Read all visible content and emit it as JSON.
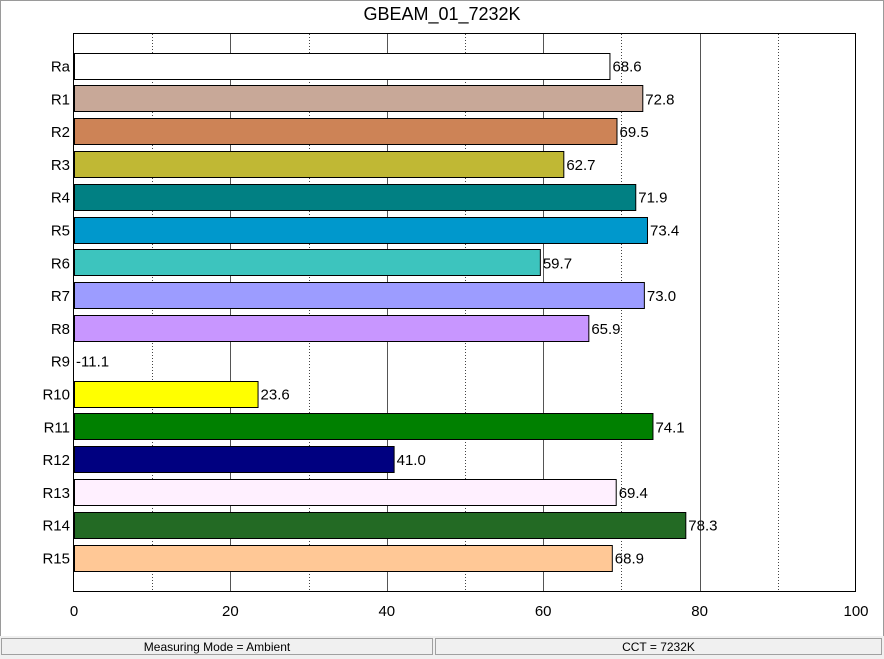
{
  "chart_data": {
    "type": "bar",
    "orientation": "horizontal",
    "title": "GBEAM_01_7232K",
    "categories": [
      "Ra",
      "R1",
      "R2",
      "R3",
      "R4",
      "R5",
      "R6",
      "R7",
      "R8",
      "R9",
      "R10",
      "R11",
      "R12",
      "R13",
      "R14",
      "R15"
    ],
    "values": [
      68.6,
      72.8,
      69.5,
      62.7,
      71.9,
      73.4,
      59.7,
      73.0,
      65.9,
      -11.1,
      23.6,
      74.1,
      41.0,
      69.4,
      78.3,
      68.9
    ],
    "value_labels": [
      "68.6",
      "72.8",
      "69.5",
      "62.7",
      "71.9",
      "73.4",
      "59.7",
      "73.0",
      "65.9",
      "-11.1",
      "23.6",
      "74.1",
      "41.0",
      "69.4",
      "78.3",
      "68.9"
    ],
    "colors": [
      "#ffffff",
      "#c8a898",
      "#cd8356",
      "#c0b834",
      "#018083",
      "#0098cc",
      "#3dc4be",
      "#9c9cff",
      "#c896ff",
      "#ffffff",
      "#ffff00",
      "#008000",
      "#000080",
      "#fff0ff",
      "#236a24",
      "#ffc896"
    ],
    "xlim": [
      0,
      100
    ],
    "x_ticks": [
      "0",
      "20",
      "40",
      "60",
      "80",
      "100"
    ],
    "grid": "vertical",
    "xlabel": "",
    "ylabel": ""
  },
  "status": {
    "measuring_mode": "Measuring Mode = Ambient",
    "cct": "CCT = 7232K"
  }
}
